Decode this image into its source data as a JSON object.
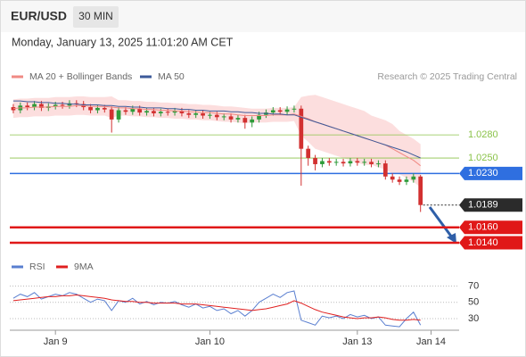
{
  "header": {
    "symbol": "EUR/USD",
    "interval": "30 MIN",
    "timestamp": "Monday, January 13, 2025 11:01:20 AM CET"
  },
  "chart_data": [
    {
      "type": "candlestick",
      "credit": "Research © 2025 Trading Central",
      "up_color": "#2e9b3a",
      "down_color": "#d23030",
      "ylim": [
        1.0125,
        1.0345
      ],
      "xlim": [
        -0.5,
        63.5
      ],
      "xticks": [
        {
          "value": 6,
          "label": "Jan 9"
        },
        {
          "value": 28,
          "label": "Jan 10"
        },
        {
          "value": 49,
          "label": "Jan 13"
        },
        {
          "value": 59.5,
          "label": "Jan 14"
        }
      ],
      "ohlc": [
        [
          1.0316,
          1.032,
          1.0308,
          1.0312
        ],
        [
          1.0312,
          1.0322,
          1.0308,
          1.0318
        ],
        [
          1.0318,
          1.0322,
          1.0312,
          1.0316
        ],
        [
          1.0316,
          1.0324,
          1.0312,
          1.032
        ],
        [
          1.032,
          1.0324,
          1.0311,
          1.0315
        ],
        [
          1.0315,
          1.0321,
          1.0311,
          1.0317
        ],
        [
          1.0317,
          1.0323,
          1.0313,
          1.0319
        ],
        [
          1.0319,
          1.0323,
          1.0314,
          1.0318
        ],
        [
          1.0318,
          1.0325,
          1.0314,
          1.0321
        ],
        [
          1.0321,
          1.0325,
          1.0316,
          1.032
        ],
        [
          1.032,
          1.0324,
          1.0312,
          1.0316
        ],
        [
          1.0316,
          1.032,
          1.0308,
          1.0312
        ],
        [
          1.0312,
          1.0319,
          1.0308,
          1.0315
        ],
        [
          1.0315,
          1.0319,
          1.0309,
          1.0313
        ],
        [
          1.0313,
          1.0317,
          1.0283,
          1.03
        ],
        [
          1.03,
          1.0316,
          1.0296,
          1.0312
        ],
        [
          1.0312,
          1.0316,
          1.0306,
          1.031
        ],
        [
          1.031,
          1.0318,
          1.0306,
          1.0314
        ],
        [
          1.0314,
          1.0318,
          1.0305,
          1.0309
        ],
        [
          1.0309,
          1.0315,
          1.0305,
          1.0311
        ],
        [
          1.0311,
          1.0315,
          1.0304,
          1.0308
        ],
        [
          1.0308,
          1.0314,
          1.0304,
          1.031
        ],
        [
          1.031,
          1.0314,
          1.0305,
          1.0309
        ],
        [
          1.0309,
          1.0315,
          1.0305,
          1.0311
        ],
        [
          1.0311,
          1.0315,
          1.0304,
          1.0308
        ],
        [
          1.0308,
          1.0312,
          1.0302,
          1.0306
        ],
        [
          1.0306,
          1.0312,
          1.0302,
          1.0308
        ],
        [
          1.0308,
          1.0312,
          1.0301,
          1.0305
        ],
        [
          1.0305,
          1.031,
          1.0301,
          1.0306
        ],
        [
          1.0306,
          1.031,
          1.0299,
          1.0303
        ],
        [
          1.0303,
          1.0308,
          1.0299,
          1.0304
        ],
        [
          1.0304,
          1.0308,
          1.0296,
          1.03
        ],
        [
          1.03,
          1.0306,
          1.0296,
          1.0302
        ],
        [
          1.0302,
          1.0306,
          1.0288,
          1.0296
        ],
        [
          1.0296,
          1.0304,
          1.029,
          1.03
        ],
        [
          1.03,
          1.031,
          1.0296,
          1.0306
        ],
        [
          1.0306,
          1.0313,
          1.0302,
          1.0309
        ],
        [
          1.0309,
          1.0316,
          1.0305,
          1.0312
        ],
        [
          1.0312,
          1.0316,
          1.0306,
          1.031
        ],
        [
          1.031,
          1.0317,
          1.0306,
          1.0313
        ],
        [
          1.0313,
          1.0318,
          1.0309,
          1.0314
        ],
        [
          1.0314,
          1.0318,
          1.0214,
          1.0262
        ],
        [
          1.0262,
          1.0266,
          1.024,
          1.025
        ],
        [
          1.025,
          1.0254,
          1.0234,
          1.0242
        ],
        [
          1.0242,
          1.025,
          1.0238,
          1.0246
        ],
        [
          1.0246,
          1.025,
          1.024,
          1.0244
        ],
        [
          1.0244,
          1.0249,
          1.024,
          1.0245
        ],
        [
          1.0245,
          1.0249,
          1.0239,
          1.0243
        ],
        [
          1.0243,
          1.025,
          1.0239,
          1.0246
        ],
        [
          1.0246,
          1.025,
          1.024,
          1.0244
        ],
        [
          1.0244,
          1.0249,
          1.024,
          1.0245
        ],
        [
          1.0245,
          1.0249,
          1.0238,
          1.0242
        ],
        [
          1.0242,
          1.0247,
          1.0238,
          1.0243
        ],
        [
          1.0243,
          1.0247,
          1.0222,
          1.0226
        ],
        [
          1.0226,
          1.023,
          1.0218,
          1.0222
        ],
        [
          1.0222,
          1.0226,
          1.0215,
          1.0219
        ],
        [
          1.0219,
          1.0226,
          1.0215,
          1.0222
        ],
        [
          1.0222,
          1.023,
          1.0218,
          1.0226
        ],
        [
          1.0226,
          1.0228,
          1.018,
          1.0189
        ]
      ],
      "overlays": [
        {
          "name": "MA 20 + Bollinger Bands",
          "color": "#f08a84",
          "band_color": "#fbd0d0",
          "values": [
            1.0314,
            1.0315,
            1.0315,
            1.0316,
            1.0316,
            1.0316,
            1.0317,
            1.0317,
            1.0317,
            1.0318,
            1.0318,
            1.0317,
            1.0317,
            1.0317,
            1.0316,
            1.0315,
            1.0315,
            1.0314,
            1.0314,
            1.0313,
            1.0313,
            1.0312,
            1.0312,
            1.0311,
            1.0311,
            1.031,
            1.031,
            1.0309,
            1.0309,
            1.0308,
            1.0307,
            1.0307,
            1.0306,
            1.0305,
            1.0305,
            1.0305,
            1.0305,
            1.0306,
            1.0306,
            1.0306,
            1.0307,
            1.0304,
            1.0301,
            1.0297,
            1.0294,
            1.0291,
            1.0288,
            1.0285,
            1.0282,
            1.0279,
            1.0276,
            1.0273,
            1.027,
            1.0267,
            1.0262,
            1.0257,
            1.0252,
            1.0247,
            1.024
          ],
          "upper": [
            1.0326,
            1.0327,
            1.0327,
            1.0328,
            1.0328,
            1.0328,
            1.0329,
            1.0329,
            1.0329,
            1.033,
            1.033,
            1.0329,
            1.0329,
            1.0329,
            1.033,
            1.0325,
            1.0325,
            1.0324,
            1.0324,
            1.0323,
            1.0323,
            1.0322,
            1.0322,
            1.0321,
            1.0321,
            1.032,
            1.032,
            1.0319,
            1.0319,
            1.0318,
            1.0317,
            1.0317,
            1.0316,
            1.0315,
            1.0314,
            1.0314,
            1.0314,
            1.0315,
            1.0315,
            1.0315,
            1.0316,
            1.0329,
            1.0331,
            1.0332,
            1.0329,
            1.0326,
            1.0323,
            1.032,
            1.0317,
            1.0314,
            1.0311,
            1.0305,
            1.0302,
            1.0299,
            1.0294,
            1.0285,
            1.028,
            1.0275,
            1.0268
          ],
          "lower": [
            1.0302,
            1.0303,
            1.0303,
            1.0304,
            1.0304,
            1.0304,
            1.0305,
            1.0305,
            1.0305,
            1.0306,
            1.0306,
            1.0305,
            1.0305,
            1.0305,
            1.0302,
            1.0305,
            1.0305,
            1.0304,
            1.0304,
            1.0303,
            1.0303,
            1.0302,
            1.0302,
            1.0301,
            1.0301,
            1.03,
            1.03,
            1.0299,
            1.0299,
            1.0298,
            1.0297,
            1.0297,
            1.0296,
            1.0295,
            1.0296,
            1.0296,
            1.0296,
            1.0297,
            1.0297,
            1.0297,
            1.0298,
            1.0279,
            1.0271,
            1.0262,
            1.0259,
            1.0256,
            1.0253,
            1.025,
            1.0247,
            1.0244,
            1.0241,
            1.0241,
            1.0238,
            1.0235,
            1.023,
            1.0229,
            1.0224,
            1.0219,
            1.0212
          ]
        },
        {
          "name": "MA 50",
          "color": "#3c5a9a",
          "values": [
            1.0324,
            1.0324,
            1.0323,
            1.0323,
            1.0322,
            1.0322,
            1.0321,
            1.0321,
            1.032,
            1.032,
            1.0319,
            1.0319,
            1.0319,
            1.0318,
            1.0318,
            1.0317,
            1.0317,
            1.0316,
            1.0316,
            1.0315,
            1.0315,
            1.0315,
            1.0314,
            1.0314,
            1.0313,
            1.0313,
            1.0312,
            1.0312,
            1.0311,
            1.0311,
            1.0311,
            1.031,
            1.031,
            1.0309,
            1.0309,
            1.0308,
            1.0308,
            1.0307,
            1.0307,
            1.0306,
            1.0306,
            1.0303,
            1.03,
            1.0297,
            1.0294,
            1.0291,
            1.0288,
            1.0285,
            1.0282,
            1.0279,
            1.0276,
            1.0273,
            1.027,
            1.0267,
            1.0264,
            1.0261,
            1.0258,
            1.0254,
            1.025
          ]
        }
      ],
      "levels": [
        {
          "value": 1.028,
          "label": "1.0280",
          "color": "#8bc34a",
          "boxed": false,
          "line_width": 0.8
        },
        {
          "value": 1.025,
          "label": "1.0250",
          "color": "#8bc34a",
          "boxed": false,
          "line_width": 0.8
        },
        {
          "value": 1.023,
          "label": "1.0230",
          "color": "#2f6fe0",
          "boxed": true,
          "line_width": 1.5
        },
        {
          "value": 1.0189,
          "label": "1.0189",
          "color": "#2b2b2b",
          "boxed": true,
          "dotted": true,
          "line_width": 1
        },
        {
          "value": 1.016,
          "label": "1.0160",
          "color": "#e01818",
          "boxed": true,
          "line_width": 2.5
        },
        {
          "value": 1.014,
          "label": "1.0140",
          "color": "#e01818",
          "boxed": true,
          "line_width": 2.5
        }
      ]
    },
    {
      "type": "line",
      "ylim": [
        19,
        87
      ],
      "yticks": [
        70,
        50,
        30
      ],
      "xlim": [
        -0.5,
        63.5
      ],
      "series": [
        {
          "name": "RSI",
          "color": "#5a7fd0",
          "values": [
            55,
            60,
            57,
            62,
            54,
            57,
            60,
            58,
            62,
            60,
            55,
            50,
            54,
            52,
            40,
            52,
            50,
            55,
            48,
            51,
            47,
            50,
            49,
            51,
            47,
            44,
            48,
            43,
            45,
            40,
            42,
            36,
            40,
            33,
            40,
            50,
            55,
            60,
            56,
            62,
            64,
            28,
            25,
            22,
            33,
            31,
            33,
            30,
            35,
            32,
            34,
            30,
            32,
            22,
            21,
            20,
            30,
            38,
            22
          ]
        },
        {
          "name": "9MA",
          "color": "#e02020",
          "values": [
            52,
            53,
            54,
            55,
            56,
            57,
            57,
            58,
            58,
            59,
            58,
            57,
            56,
            55,
            53,
            52,
            51,
            51,
            50,
            50,
            49,
            49,
            49,
            49,
            48,
            48,
            48,
            47,
            46,
            45,
            44,
            43,
            42,
            41,
            40,
            41,
            42,
            44,
            46,
            48,
            52,
            49,
            45,
            41,
            38,
            36,
            34,
            32,
            31,
            30,
            31,
            31,
            32,
            31,
            29,
            28,
            28,
            29,
            28
          ]
        }
      ]
    }
  ]
}
